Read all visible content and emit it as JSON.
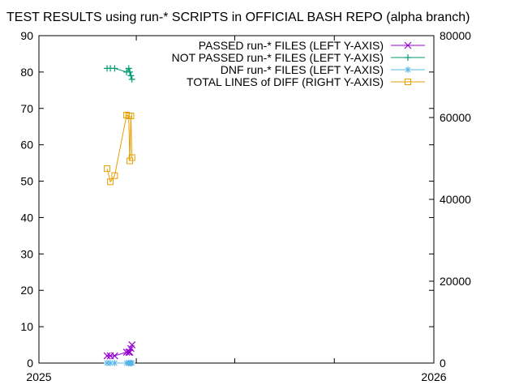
{
  "chart_data": {
    "type": "line",
    "title": "TEST RESULTS using run-* SCRIPTS in OFFICIAL BASH REPO (alpha branch)",
    "xlabel": "",
    "ylabel": "",
    "y2label": "",
    "x_ticks": [
      "2025",
      "2026"
    ],
    "xlim": [
      "2025-01-01",
      "2026-01-01"
    ],
    "ylim": [
      0,
      90
    ],
    "y_ticks": [
      0,
      10,
      20,
      30,
      40,
      50,
      60,
      70,
      80,
      90
    ],
    "y2lim": [
      0,
      80000
    ],
    "y2_ticks": [
      0,
      20000,
      40000,
      60000,
      80000
    ],
    "grid": false,
    "legend_position": "top-right",
    "series": [
      {
        "name": "PASSED run-* FILES (LEFT Y-AXIS)",
        "axis": "left",
        "color": "#9400d3",
        "marker": "x",
        "points": [
          [
            "2025-03-05",
            2
          ],
          [
            "2025-03-08",
            2
          ],
          [
            "2025-03-12",
            2
          ],
          [
            "2025-03-23",
            3
          ],
          [
            "2025-03-25",
            3
          ],
          [
            "2025-03-26",
            3
          ],
          [
            "2025-03-27",
            4
          ],
          [
            "2025-03-28",
            5
          ]
        ]
      },
      {
        "name": "NOT PASSED run-* FILES (LEFT Y-AXIS)",
        "axis": "left",
        "color": "#009e73",
        "marker": "+",
        "points": [
          [
            "2025-03-05",
            81
          ],
          [
            "2025-03-08",
            81
          ],
          [
            "2025-03-12",
            81
          ],
          [
            "2025-03-23",
            80
          ],
          [
            "2025-03-25",
            81
          ],
          [
            "2025-03-26",
            80
          ],
          [
            "2025-03-27",
            79
          ],
          [
            "2025-03-28",
            78
          ]
        ]
      },
      {
        "name": "DNF run-* FILES (LEFT Y-AXIS)",
        "axis": "left",
        "color": "#56b4e9",
        "marker": "*",
        "points": [
          [
            "2025-03-05",
            0
          ],
          [
            "2025-03-08",
            0
          ],
          [
            "2025-03-12",
            0
          ],
          [
            "2025-03-23",
            0
          ],
          [
            "2025-03-25",
            0
          ],
          [
            "2025-03-26",
            0
          ],
          [
            "2025-03-27",
            0
          ],
          [
            "2025-03-28",
            0
          ]
        ]
      },
      {
        "name": "TOTAL LINES of DIFF (RIGHT Y-AXIS)",
        "axis": "right",
        "color": "#e69f00",
        "marker": "square",
        "points": [
          [
            "2025-03-05",
            47500
          ],
          [
            "2025-03-08",
            44300
          ],
          [
            "2025-03-12",
            45800
          ],
          [
            "2025-03-23",
            60600
          ],
          [
            "2025-03-25",
            60400
          ],
          [
            "2025-03-26",
            49400
          ],
          [
            "2025-03-27",
            60400
          ],
          [
            "2025-03-28",
            50200
          ]
        ]
      }
    ]
  }
}
